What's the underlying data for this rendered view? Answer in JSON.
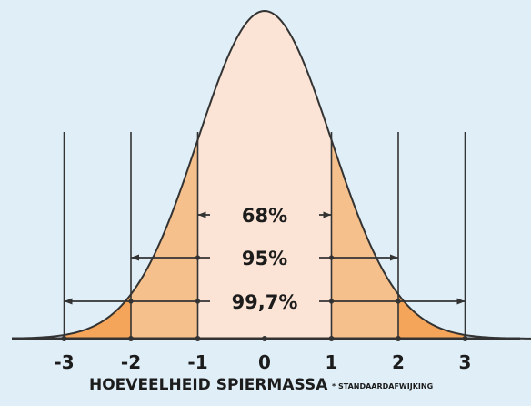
{
  "chart_data": {
    "type": "area",
    "distribution": "normal",
    "xlim": [
      -3.75,
      4.0
    ],
    "x_ticks": [
      -3,
      -2,
      -1,
      0,
      1,
      2,
      3
    ],
    "tick_labels": [
      "-3",
      "-2",
      "-1",
      "0",
      "1",
      "2",
      "3"
    ],
    "intervals": [
      {
        "from": -1,
        "to": 1,
        "label": "68%",
        "value": 68
      },
      {
        "from": -2,
        "to": 2,
        "label": "95%",
        "value": 95
      },
      {
        "from": -3,
        "to": 3,
        "label": "99,7%",
        "value": 99.7
      }
    ],
    "xlabel": "HOEVEELHEID SPIERMASSA",
    "note": "* STANDAARDAFWIJKING",
    "colors": {
      "background": "#dfeef7",
      "band_1sd": "#fbe4d5",
      "band_2sd": "#f6c08c",
      "band_3sd": "#f4a559",
      "tail": "#dfeef7",
      "line": "#333333"
    }
  }
}
